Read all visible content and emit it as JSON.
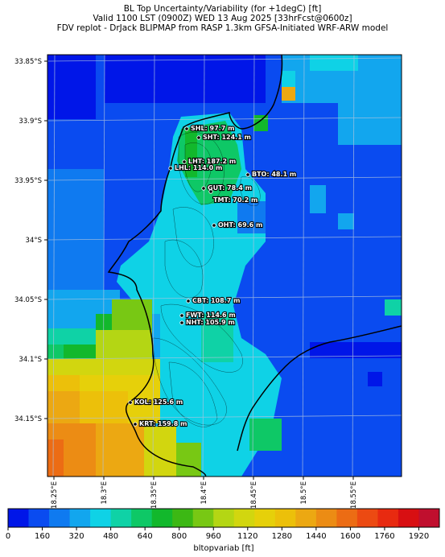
{
  "header": {
    "line1": "BL Top Uncertainty/Variability (for +1degC) [ft]",
    "line2": "Valid 1100 LST (0900Z) WED 13 Aug 2025 [33hrFcst@0600z]",
    "line3": "FDV replot - DrJack BLIPMAP from RASP 1.3km GFSA-Initiated WRF-ARW model"
  },
  "map": {
    "lat_ticks": [
      "33.85°S",
      "33.9°S",
      "33.95°S",
      "34°S",
      "34.05°S",
      "34.1°S",
      "34.15°S"
    ],
    "lon_ticks": [
      "18.25°E",
      "18.3°E",
      "18.35°E",
      "18.4°E",
      "18.45°E",
      "18.5°E",
      "18.55°E"
    ],
    "stations": [
      {
        "code": "SHL",
        "label": "SHL: 97.7 m"
      },
      {
        "code": "SHT",
        "label": "SHT: 124.1 m"
      },
      {
        "code": "LHT",
        "label": "LHT: 187.2 m"
      },
      {
        "code": "LHL",
        "label": "LHL: 114.0 m"
      },
      {
        "code": "BTO",
        "label": "BTO: 48.1 m"
      },
      {
        "code": "GUT",
        "label": "GUT: 78.4 m"
      },
      {
        "code": "TMT",
        "label": "TMT: 70.2 m"
      },
      {
        "code": "OHT",
        "label": "OHT: 69.6 m"
      },
      {
        "code": "CBT",
        "label": "CBT: 108.7 m"
      },
      {
        "code": "FWT",
        "label": "FWT: 114.6 m"
      },
      {
        "code": "NHT",
        "label": "NHT: 105.9 m"
      },
      {
        "code": "KOL",
        "label": "KOL: 125.6 m"
      },
      {
        "code": "KRT",
        "label": "KRT: 159.8 m"
      }
    ]
  },
  "colorbar": {
    "label": "bltopvariab [ft]",
    "ticks": [
      "0",
      "160",
      "320",
      "480",
      "640",
      "800",
      "960",
      "1120",
      "1280",
      "1440",
      "1600",
      "1760",
      "1920"
    ],
    "colors": [
      "#0016e8",
      "#0a4bf0",
      "#0f7af0",
      "#12a6ee",
      "#0fd2e6",
      "#0fd2a6",
      "#0ec866",
      "#12b82c",
      "#3cb814",
      "#78c814",
      "#b4d614",
      "#d2d60f",
      "#e6d00a",
      "#ecc00a",
      "#eca812",
      "#ec8c14",
      "#ec6c14",
      "#ec4a12",
      "#e82a10",
      "#d80f12",
      "#c00f2e"
    ]
  }
}
